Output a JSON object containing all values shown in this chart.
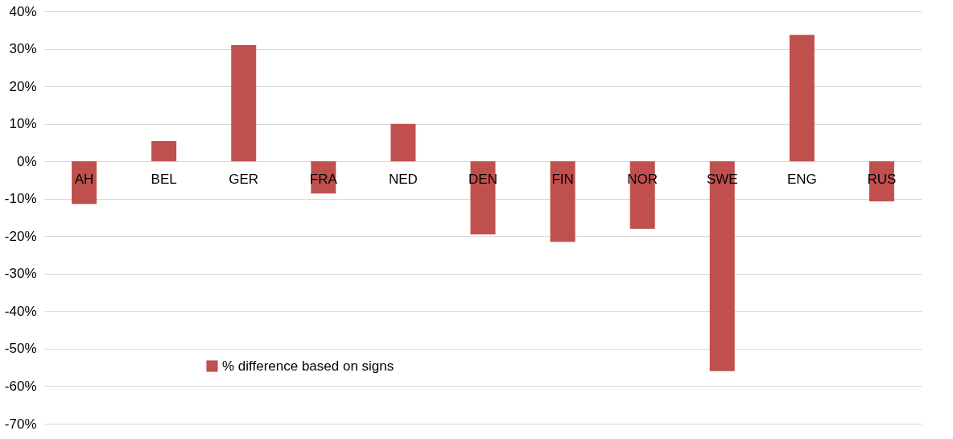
{
  "chart_data": {
    "type": "bar",
    "categories": [
      "AH",
      "BEL",
      "GER",
      "FRA",
      "NED",
      "DEN",
      "FIN",
      "NOR",
      "SWE",
      "ENG",
      "RUS"
    ],
    "series": [
      {
        "name": "% difference based on signs",
        "color": "#c0504d",
        "values": [
          -11.4,
          5.4,
          31,
          -8.6,
          10,
          -19.5,
          -21.5,
          -18,
          -56,
          33.7,
          -10.7
        ]
      }
    ],
    "ylim": [
      -70,
      40
    ],
    "yticks": [
      {
        "value": -70,
        "label": "-70%"
      },
      {
        "value": -60,
        "label": "-60%"
      },
      {
        "value": -50,
        "label": "-50%"
      },
      {
        "value": -40,
        "label": "-40%"
      },
      {
        "value": -30,
        "label": "-30%"
      },
      {
        "value": -20,
        "label": "-20%"
      },
      {
        "value": -10,
        "label": "-10%"
      },
      {
        "value": 0,
        "label": "0%"
      },
      {
        "value": 10,
        "label": "10%"
      },
      {
        "value": 20,
        "label": "20%"
      },
      {
        "value": 30,
        "label": "30%"
      },
      {
        "value": 40,
        "label": "40%"
      }
    ],
    "grid": "y",
    "legend": "bottom left"
  }
}
